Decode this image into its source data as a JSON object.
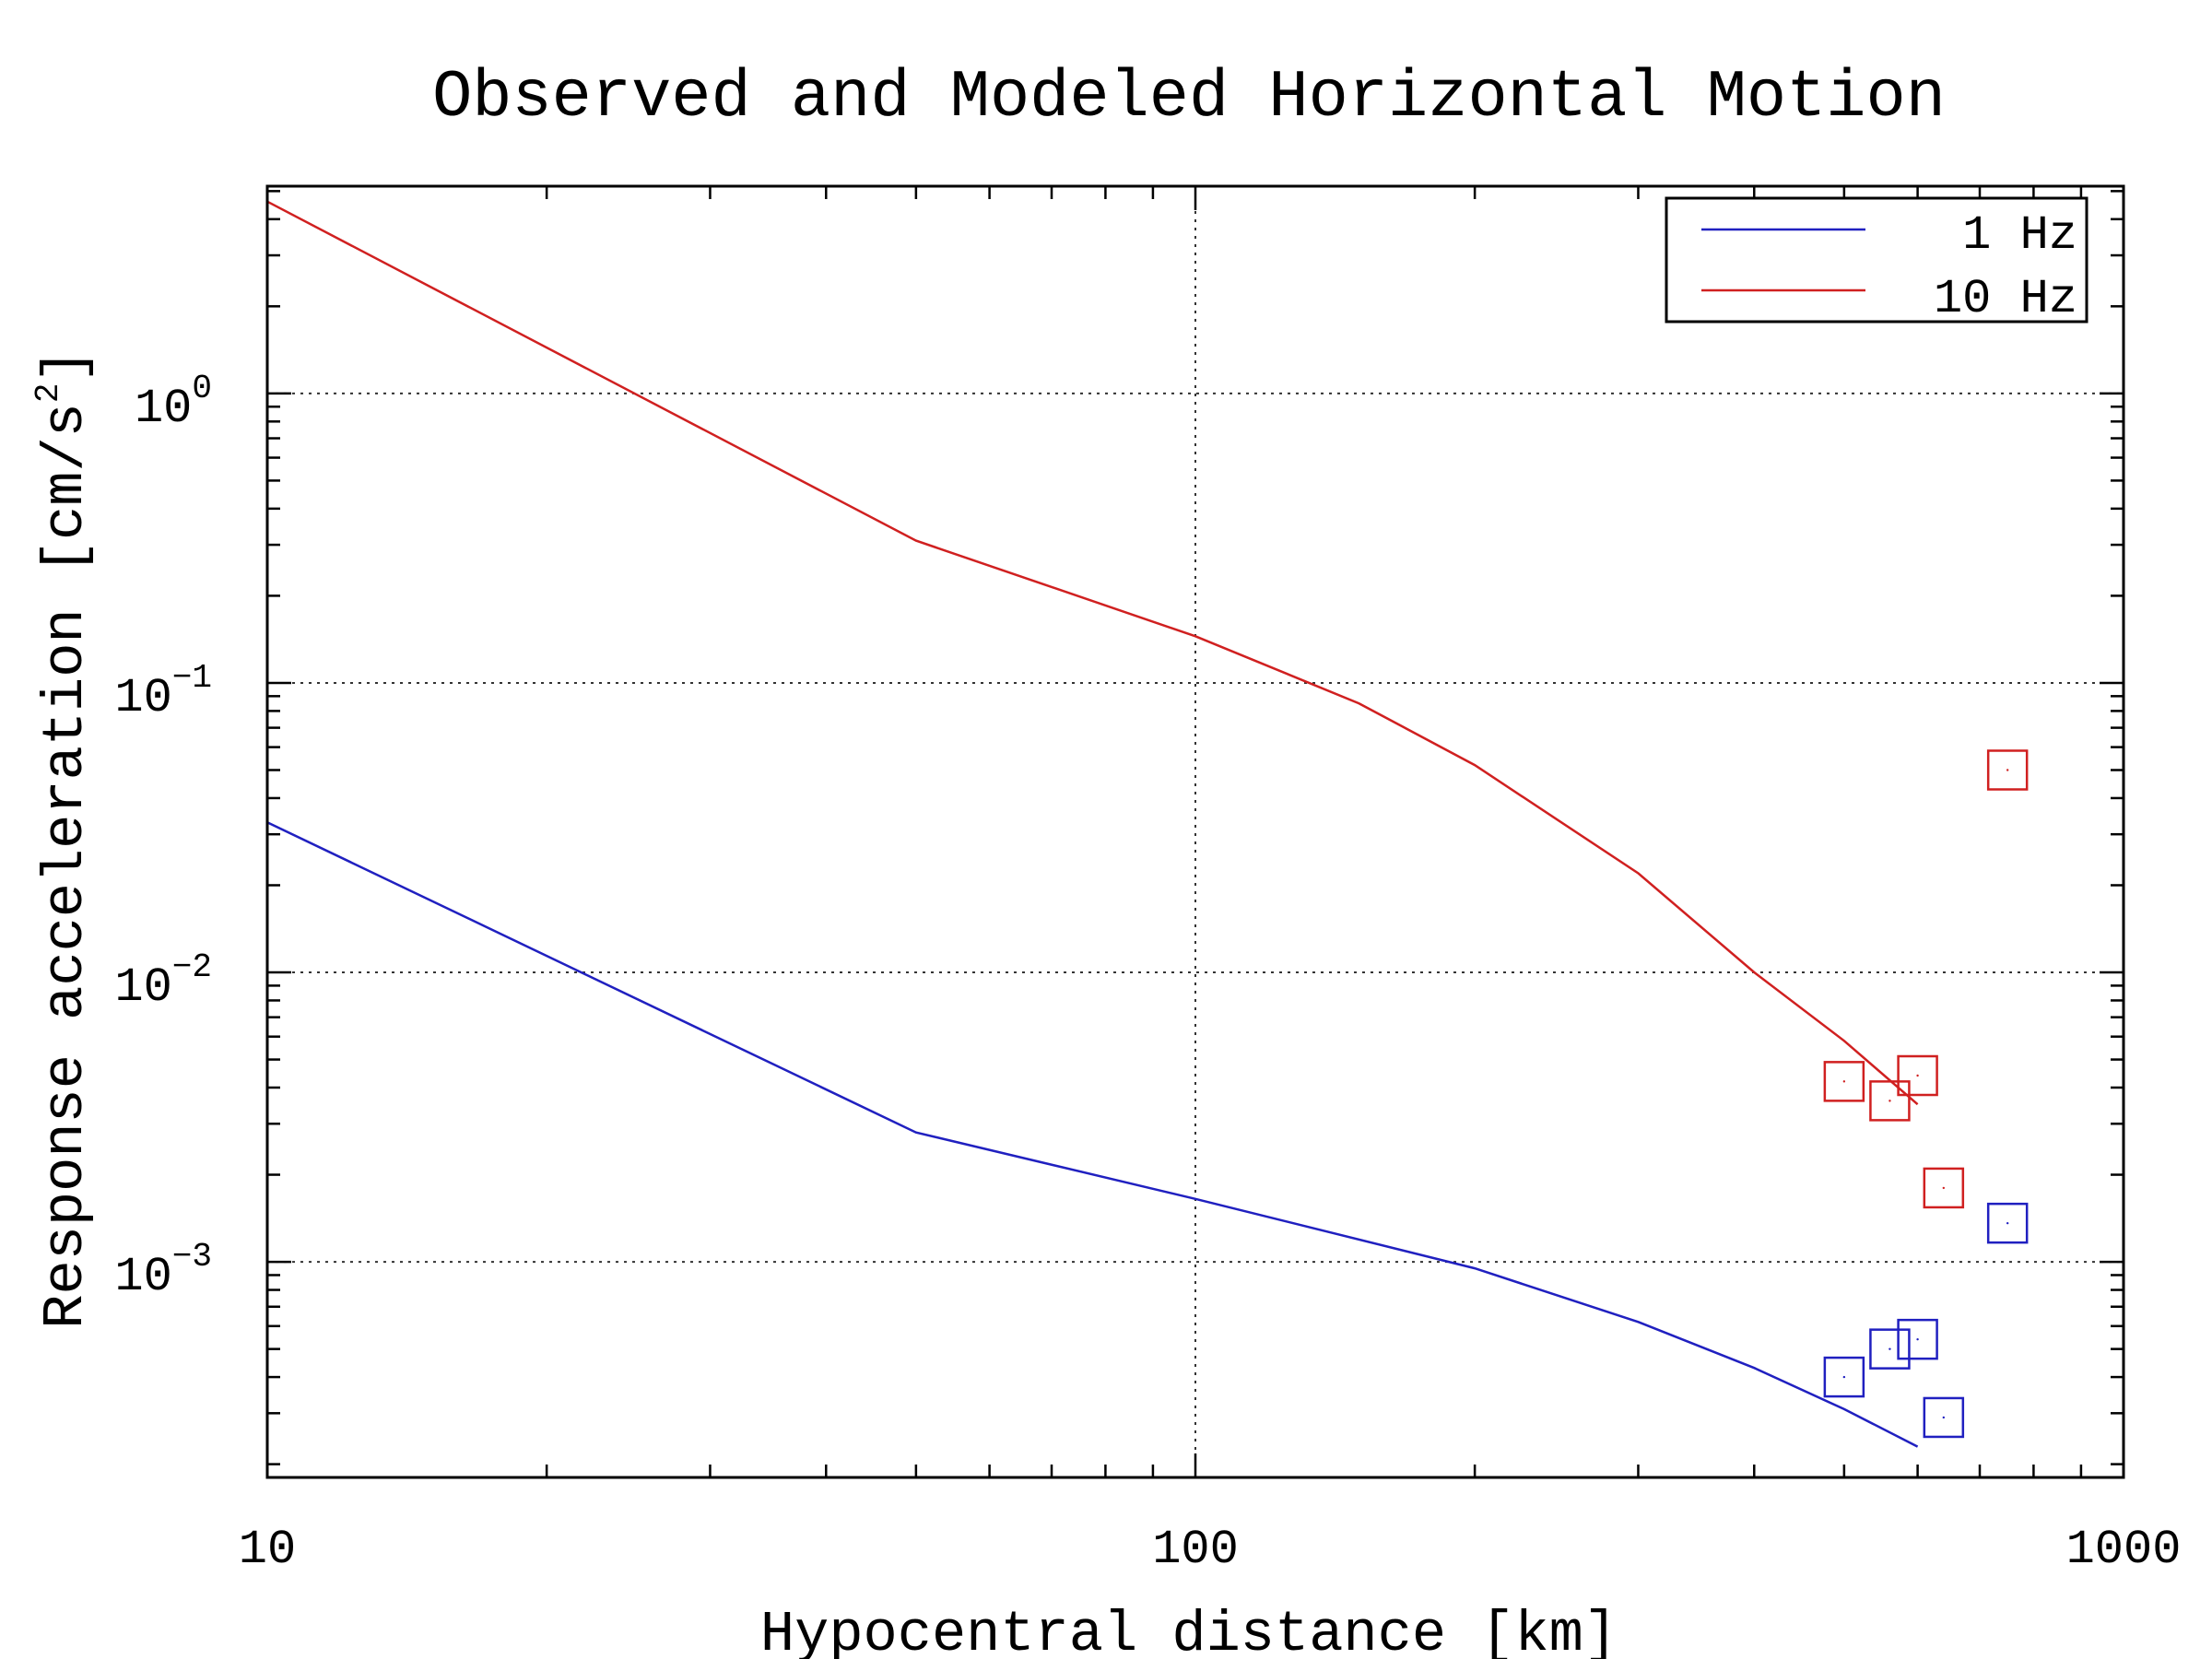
{
  "chart_data": {
    "type": "line",
    "title": "Observed and Modeled Horizontal Motion",
    "xlabel": "Hypocentral distance [km]",
    "ylabel_main": "Response acceleration [cm/s",
    "ylabel_sup": "2",
    "ylabel_close": "]",
    "xscale": "log",
    "yscale": "log",
    "xlim": [
      10,
      1000
    ],
    "ylim": [
      0.00018,
      5.2
    ],
    "grid": true,
    "legend_position": "top-right",
    "x_ticks": [
      {
        "value": 10,
        "label": "10"
      },
      {
        "value": 100,
        "label": "100"
      },
      {
        "value": 1000,
        "label": "1000"
      }
    ],
    "y_ticks": [
      {
        "value": 1,
        "base": "10",
        "exp": "0"
      },
      {
        "value": 0.1,
        "base": "10",
        "exp": "−1"
      },
      {
        "value": 0.01,
        "base": "10",
        "exp": "−2"
      },
      {
        "value": 0.001,
        "base": "10",
        "exp": "−3"
      }
    ],
    "series": [
      {
        "name": "1 Hz",
        "color": "#2020c0",
        "line": [
          [
            10,
            0.033
          ],
          [
            50,
            0.0028
          ],
          [
            100,
            0.00165
          ],
          [
            200,
            0.00095
          ],
          [
            300,
            0.00062
          ],
          [
            400,
            0.00043
          ],
          [
            500,
            0.00031
          ],
          [
            600,
            0.00023
          ]
        ],
        "observed": [
          [
            500,
            0.0004
          ],
          [
            560,
            0.0005
          ],
          [
            600,
            0.00054
          ],
          [
            640,
            0.00029
          ],
          [
            750,
            0.00136
          ]
        ]
      },
      {
        "name": "10 Hz",
        "color": "#d02020",
        "line": [
          [
            10,
            4.6
          ],
          [
            50,
            0.31
          ],
          [
            100,
            0.145
          ],
          [
            150,
            0.085
          ],
          [
            200,
            0.052
          ],
          [
            300,
            0.022
          ],
          [
            400,
            0.01
          ],
          [
            500,
            0.0058
          ],
          [
            600,
            0.0035
          ]
        ],
        "observed": [
          [
            500,
            0.0042
          ],
          [
            560,
            0.0036
          ],
          [
            600,
            0.0044
          ],
          [
            640,
            0.0018
          ],
          [
            750,
            0.05
          ]
        ]
      }
    ]
  }
}
